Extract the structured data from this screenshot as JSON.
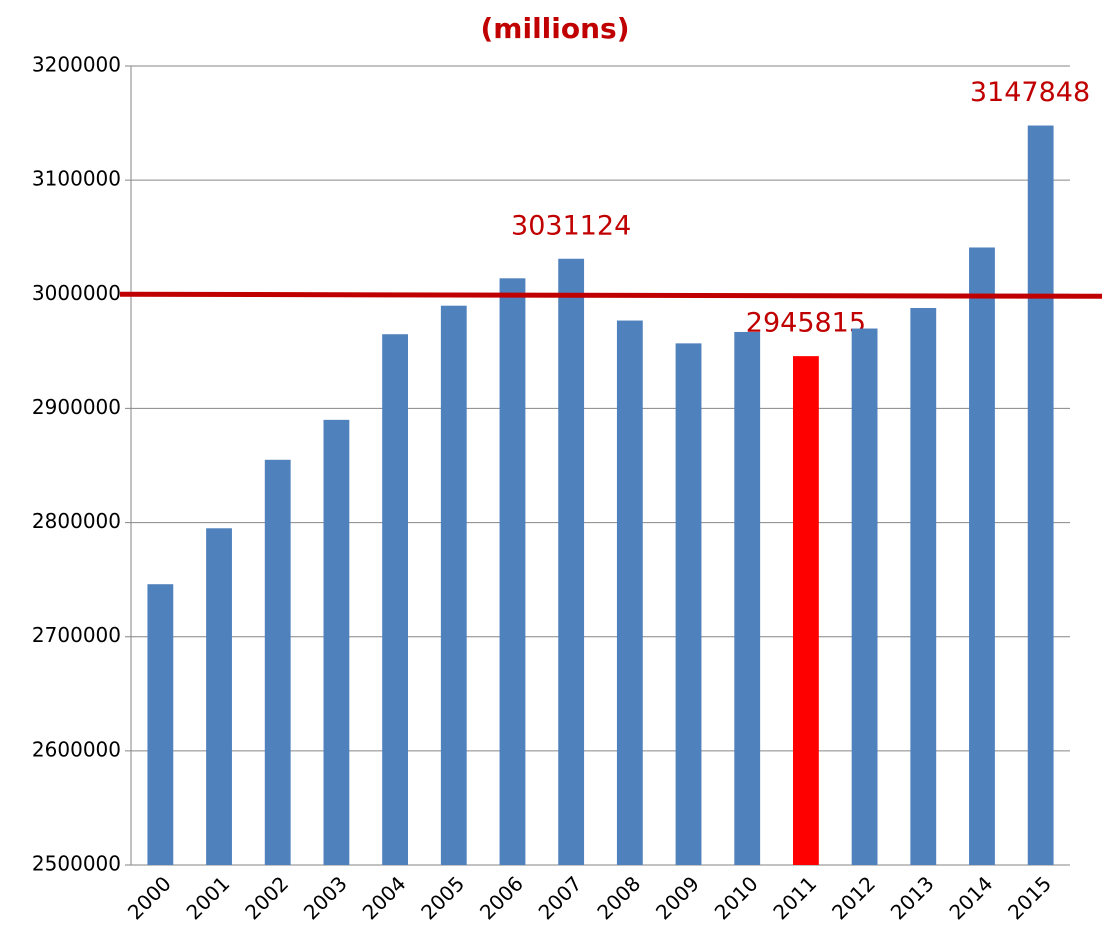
{
  "chart_data": {
    "type": "bar",
    "title": "(millions)",
    "categories": [
      "2000",
      "2001",
      "2002",
      "2003",
      "2004",
      "2005",
      "2006",
      "2007",
      "2008",
      "2009",
      "2010",
      "2011",
      "2012",
      "2013",
      "2014",
      "2015"
    ],
    "values": [
      2746000,
      2795000,
      2855000,
      2890000,
      2965000,
      2990000,
      3014000,
      3031124,
      2977000,
      2957000,
      2967000,
      2945815,
      2970000,
      2988000,
      3041000,
      3147848
    ],
    "value_labels": [
      null,
      null,
      null,
      null,
      null,
      null,
      null,
      "3031124",
      null,
      null,
      null,
      "2945815",
      null,
      null,
      null,
      "3147848"
    ],
    "colors": [
      "#4f81bd",
      "#4f81bd",
      "#4f81bd",
      "#4f81bd",
      "#4f81bd",
      "#4f81bd",
      "#4f81bd",
      "#4f81bd",
      "#4f81bd",
      "#4f81bd",
      "#4f81bd",
      "#ff0000",
      "#4f81bd",
      "#4f81bd",
      "#4f81bd",
      "#4f81bd"
    ],
    "ylim": [
      2500000,
      3200000
    ],
    "yticks": [
      2500000,
      2600000,
      2700000,
      2800000,
      2900000,
      3000000,
      3100000,
      3200000
    ],
    "grid": true,
    "reference_line": {
      "value": 3000000,
      "color": "#c00000"
    }
  }
}
